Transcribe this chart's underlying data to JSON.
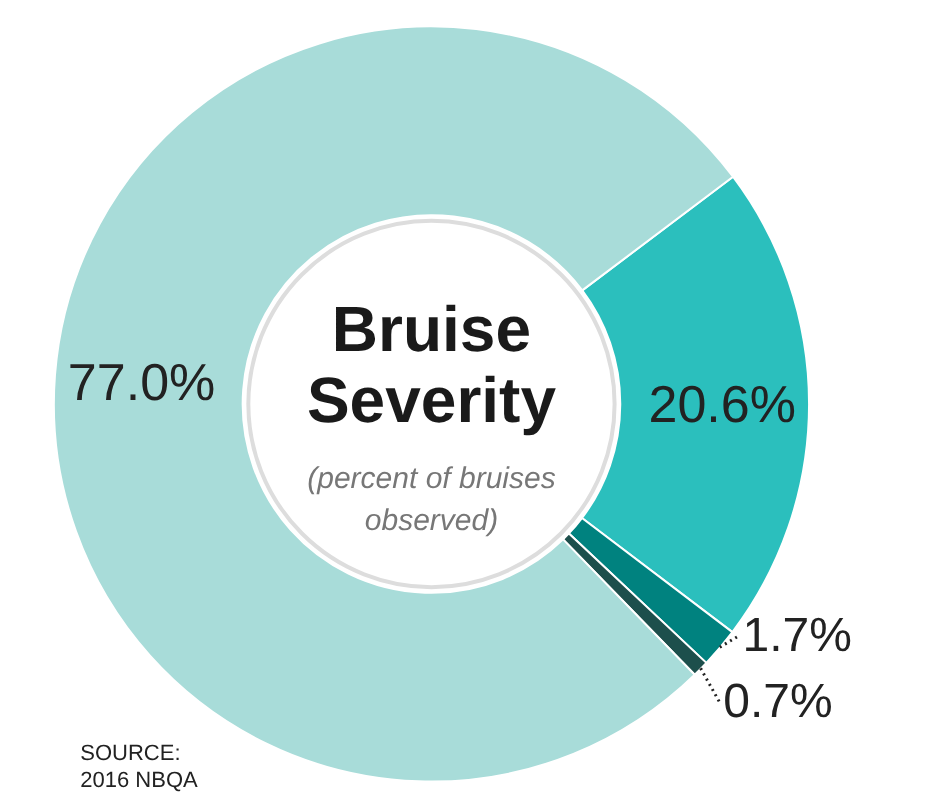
{
  "chart_data": {
    "type": "donut",
    "title": "Bruise Severity",
    "subtitle": "(percent of bruises observed)",
    "categories": [
      null,
      null,
      null,
      null
    ],
    "values": [
      20.6,
      1.7,
      0.7,
      77.0
    ],
    "colors": [
      "#2bbfbd",
      "#00827f",
      "#1d4f4c",
      "#a8dcd9"
    ],
    "value_labels": [
      "20.6%",
      "1.7%",
      "0.7%",
      "77.0%"
    ],
    "annotations": [
      "SOURCE: 2016 NBQA"
    ]
  }
}
